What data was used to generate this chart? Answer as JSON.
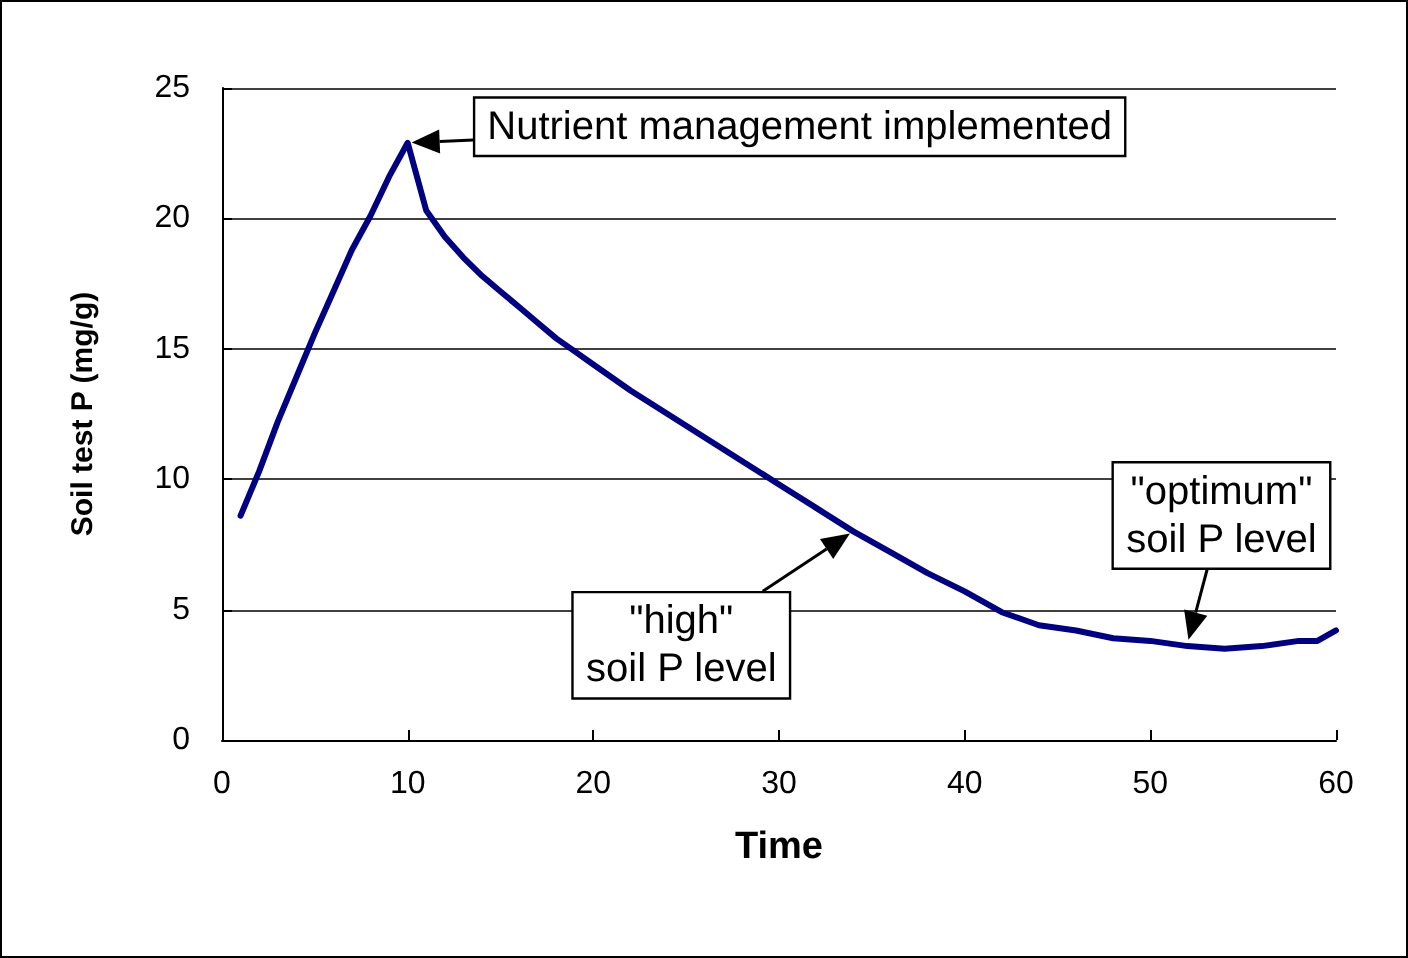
{
  "chart_data": {
    "type": "line",
    "xlabel": "Time",
    "ylabel": "Soil test P (mg/g)",
    "x": [
      1,
      2,
      3,
      4,
      5,
      6,
      7,
      8,
      9,
      10,
      11,
      12,
      13,
      14,
      15,
      16,
      17,
      18,
      19,
      20,
      22,
      24,
      26,
      28,
      30,
      32,
      34,
      36,
      38,
      40,
      42,
      44,
      46,
      48,
      50,
      52,
      54,
      56,
      58,
      59,
      60
    ],
    "series": [
      {
        "color": "#000080",
        "values": [
          8.6,
          10.3,
          12.2,
          13.9,
          15.6,
          17.2,
          18.8,
          20.1,
          21.6,
          22.9,
          20.3,
          19.3,
          18.5,
          17.8,
          17.2,
          16.6,
          16.0,
          15.4,
          14.9,
          14.4,
          13.4,
          12.5,
          11.6,
          10.7,
          9.8,
          8.9,
          8.0,
          7.2,
          6.4,
          5.7,
          4.9,
          4.4,
          4.2,
          3.9,
          3.8,
          3.6,
          3.5,
          3.6,
          3.8,
          3.8,
          4.2
        ]
      }
    ],
    "xlim": [
      0,
      60
    ],
    "xticks": [
      0,
      10,
      20,
      30,
      40,
      50,
      60
    ],
    "ylim": [
      0,
      25
    ],
    "yticks": [
      0,
      5,
      10,
      15,
      20,
      25
    ],
    "grid": "y",
    "marker": "none",
    "line_style": "solid",
    "annotations": [
      {
        "text": "Nutrient management implemented",
        "x": 10,
        "y": 22.9
      },
      {
        "text": "\"high\"\nsoil P level",
        "x": 34,
        "y": 8.0
      },
      {
        "text": "\"optimum\"\nsoil P level",
        "x": 52,
        "y": 3.7
      }
    ]
  }
}
